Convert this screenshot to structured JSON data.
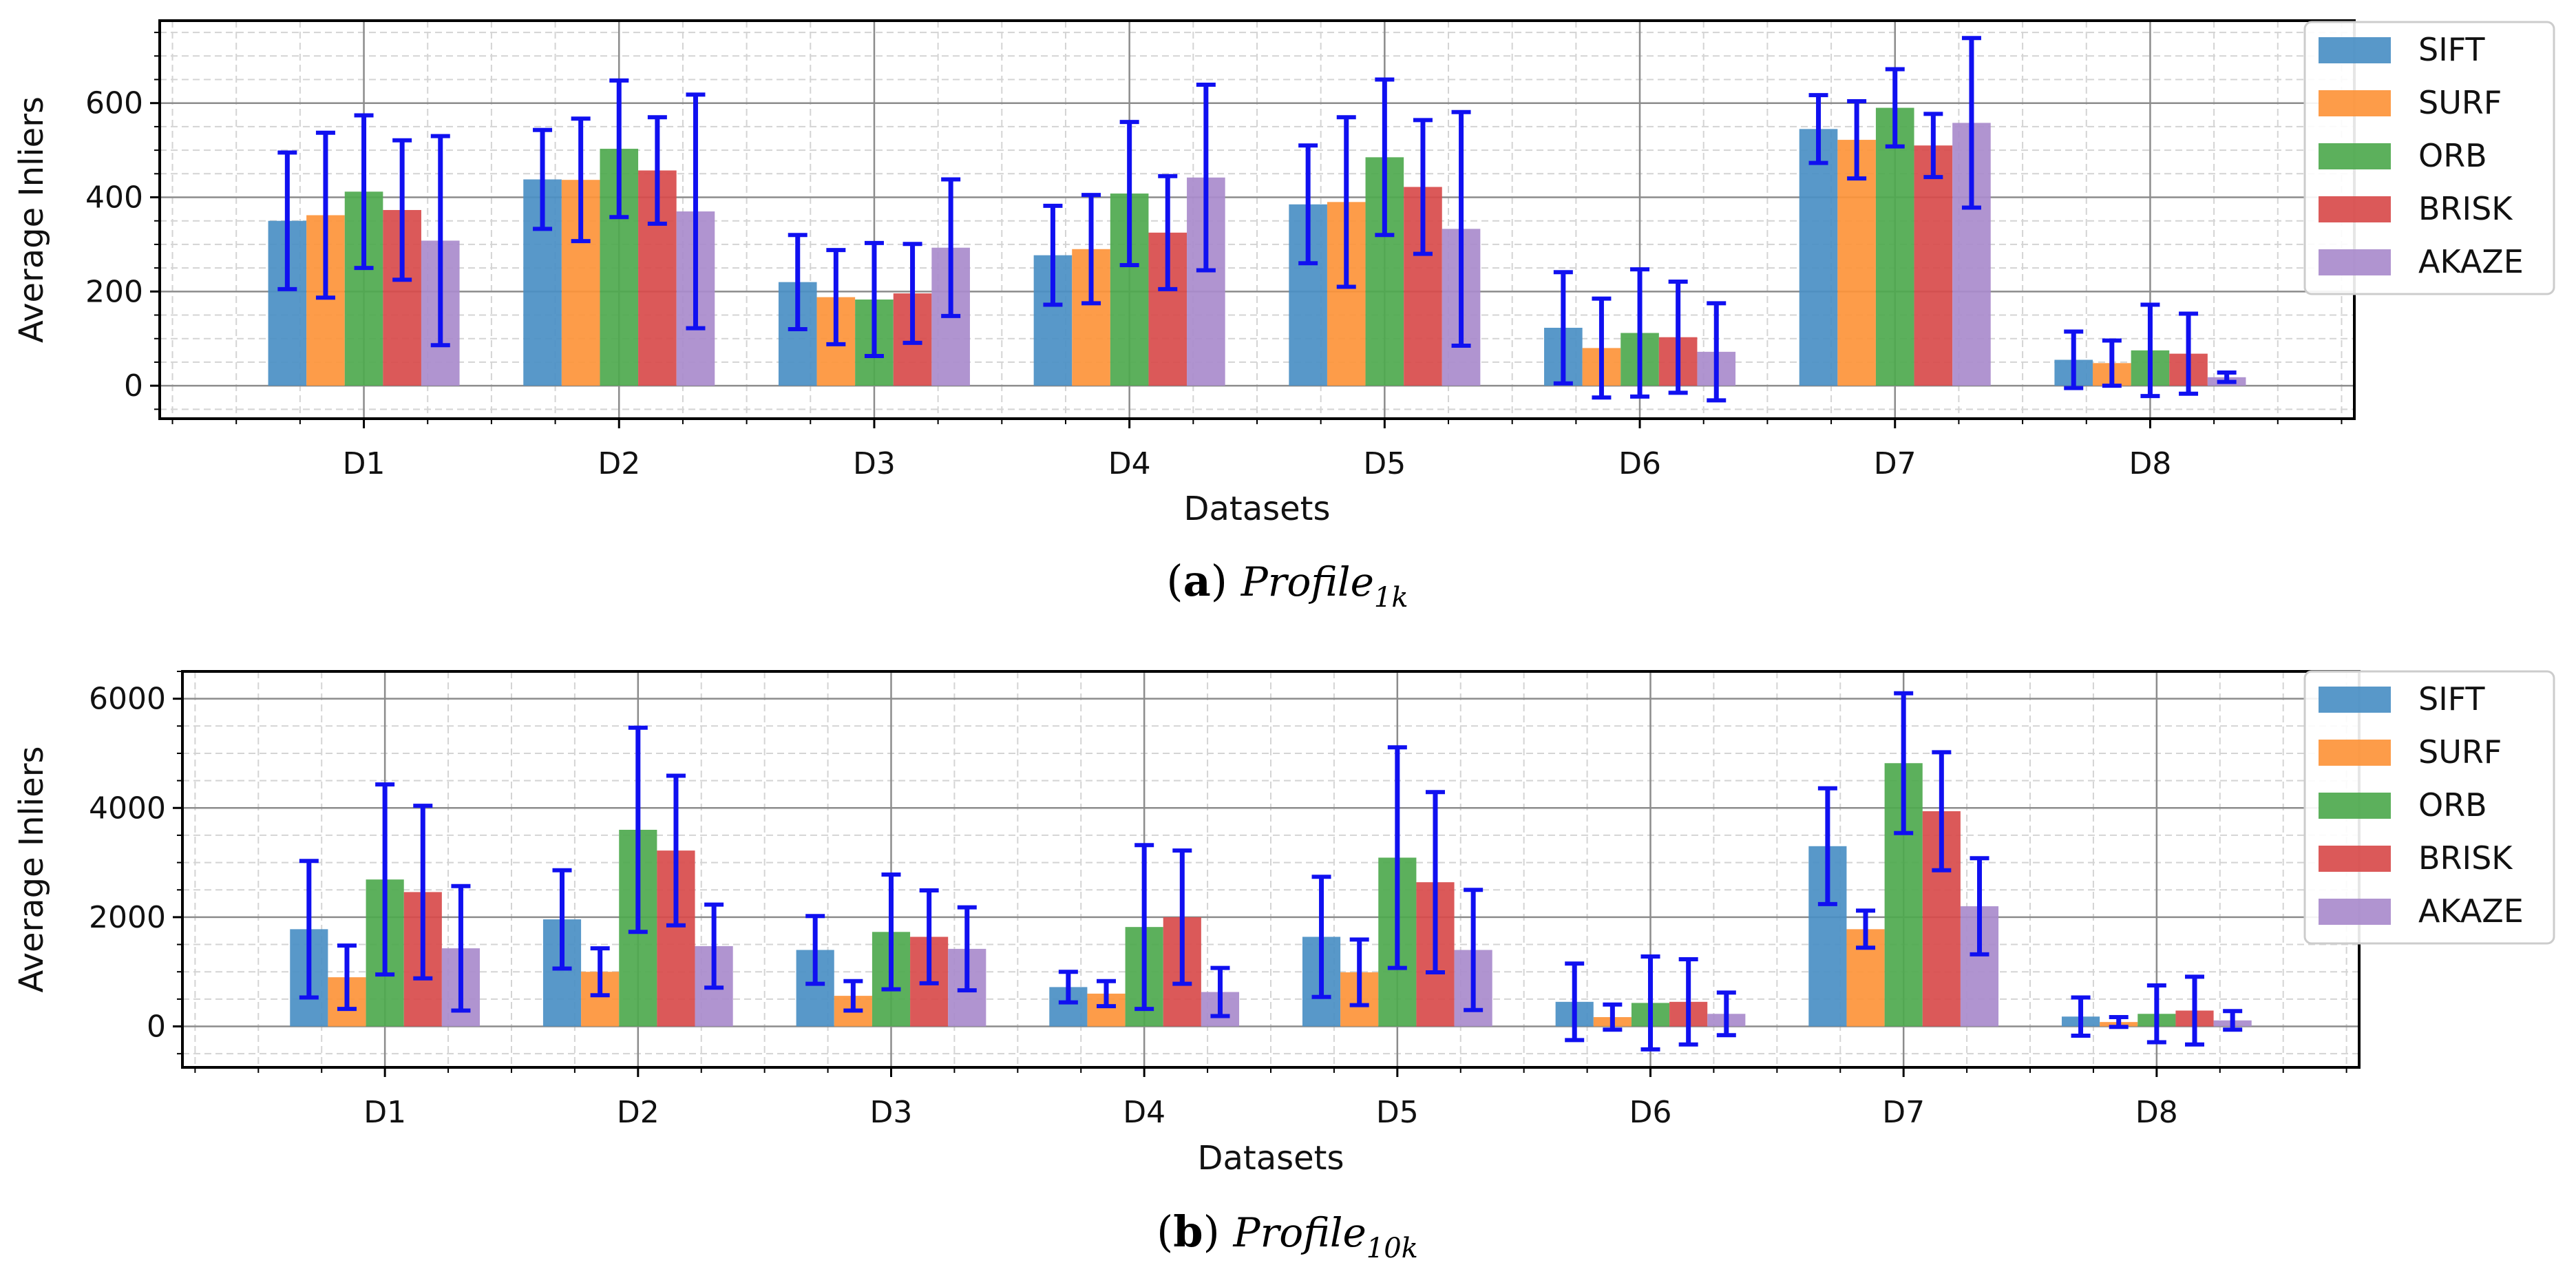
{
  "legend": [
    "SIFT",
    "SURF",
    "ORB",
    "BRISK",
    "AKAZE"
  ],
  "colors": {
    "SIFT": "#4a8fc4",
    "SURF": "#fd943a",
    "ORB": "#4ea94e",
    "BRISK": "#d84b4b",
    "AKAZE": "#a98bcc",
    "errorbar": "#1010f0"
  },
  "chart_data": [
    {
      "type": "bar",
      "caption": {
        "letter": "a",
        "base": "Profile",
        "sub": "1k"
      },
      "xlabel": "Datasets",
      "ylabel": "Average Inliers",
      "categories": [
        "D1",
        "D2",
        "D3",
        "D4",
        "D5",
        "D6",
        "D7",
        "D8"
      ],
      "ylim": [
        -70,
        775
      ],
      "yticks": [
        0,
        200,
        400,
        600
      ],
      "grid": true,
      "legend_position": "right",
      "series": [
        {
          "name": "SIFT",
          "values": [
            350,
            438,
            220,
            277,
            385,
            123,
            545,
            55
          ],
          "errors": [
            145,
            105,
            100,
            105,
            125,
            118,
            72,
            60
          ]
        },
        {
          "name": "SURF",
          "values": [
            362,
            437,
            188,
            290,
            390,
            80,
            522,
            48
          ],
          "errors": [
            175,
            130,
            100,
            115,
            180,
            105,
            82,
            48
          ]
        },
        {
          "name": "ORB",
          "values": [
            412,
            503,
            183,
            408,
            485,
            112,
            590,
            75
          ],
          "errors": [
            162,
            145,
            120,
            152,
            165,
            135,
            82,
            97
          ]
        },
        {
          "name": "BRISK",
          "values": [
            373,
            457,
            196,
            325,
            422,
            103,
            510,
            68
          ],
          "errors": [
            148,
            113,
            105,
            120,
            142,
            118,
            67,
            85
          ]
        },
        {
          "name": "AKAZE",
          "values": [
            308,
            370,
            293,
            442,
            333,
            72,
            558,
            18
          ],
          "errors": [
            222,
            248,
            145,
            197,
            248,
            103,
            180,
            10
          ]
        }
      ]
    },
    {
      "type": "bar",
      "caption": {
        "letter": "b",
        "base": "Profile",
        "sub": "10k"
      },
      "xlabel": "Datasets",
      "ylabel": "Average Inliers",
      "categories": [
        "D1",
        "D2",
        "D3",
        "D4",
        "D5",
        "D6",
        "D7",
        "D8"
      ],
      "ylim": [
        -750,
        6500
      ],
      "yticks": [
        0,
        2000,
        4000,
        6000
      ],
      "grid": true,
      "legend_position": "right",
      "series": [
        {
          "name": "SIFT",
          "values": [
            1780,
            1960,
            1400,
            720,
            1640,
            450,
            3300,
            180
          ],
          "errors": [
            1250,
            900,
            620,
            280,
            1100,
            700,
            1060,
            350
          ]
        },
        {
          "name": "SURF",
          "values": [
            900,
            1000,
            560,
            600,
            990,
            170,
            1780,
            80
          ],
          "errors": [
            580,
            430,
            270,
            230,
            600,
            230,
            340,
            90
          ]
        },
        {
          "name": "ORB",
          "values": [
            2690,
            3600,
            1730,
            1820,
            3090,
            430,
            4820,
            230
          ],
          "errors": [
            1740,
            1870,
            1050,
            1500,
            2020,
            850,
            1280,
            520
          ]
        },
        {
          "name": "BRISK",
          "values": [
            2460,
            3220,
            1640,
            2000,
            2640,
            450,
            3940,
            290
          ],
          "errors": [
            1580,
            1370,
            850,
            1220,
            1650,
            780,
            1080,
            620
          ]
        },
        {
          "name": "AKAZE",
          "values": [
            1430,
            1470,
            1420,
            630,
            1400,
            230,
            2200,
            110
          ],
          "errors": [
            1140,
            760,
            760,
            440,
            1100,
            390,
            880,
            170
          ]
        }
      ]
    }
  ]
}
